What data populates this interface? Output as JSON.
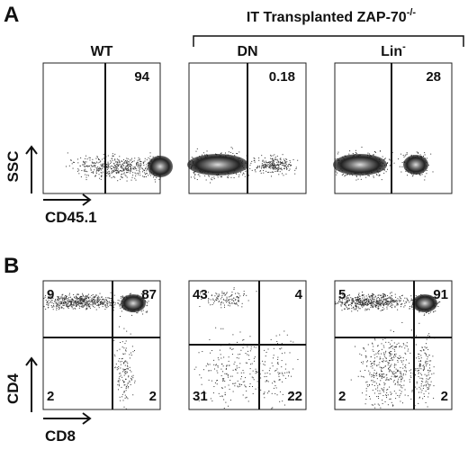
{
  "panel_a": {
    "label": "A",
    "header": {
      "text": "IT Transplanted ZAP-70",
      "sup": "-/-"
    },
    "columns": [
      {
        "label": "WT"
      },
      {
        "label": "DN"
      },
      {
        "label": "Lin",
        "sup": "-"
      }
    ],
    "percentages": [
      "94",
      "0.18",
      "28"
    ],
    "y_axis": "SSC",
    "x_axis": "CD45.1"
  },
  "panel_b": {
    "label": "B",
    "quadrants": [
      {
        "tl": "9",
        "tr": "87",
        "bl": "2",
        "br": "2"
      },
      {
        "tl": "43",
        "tr": "4",
        "bl": "31",
        "br": "22"
      },
      {
        "tl": "5",
        "tr": "91",
        "bl": "2",
        "br": "2"
      }
    ],
    "y_axis": "CD4",
    "x_axis": "CD8"
  }
}
